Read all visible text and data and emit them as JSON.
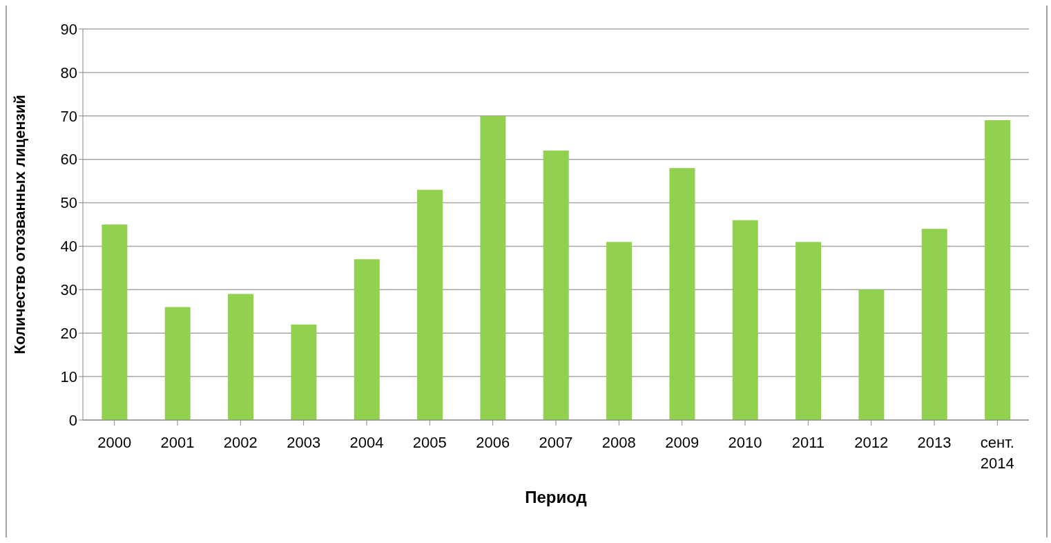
{
  "chart_data": {
    "type": "bar",
    "xlabel": "Период",
    "ylabel": "Количество отозванных лицензий",
    "categories": [
      "2000",
      "2001",
      "2002",
      "2003",
      "2004",
      "2005",
      "2006",
      "2007",
      "2008",
      "2009",
      "2010",
      "2011",
      "2012",
      "2013",
      "сент. 2014"
    ],
    "values": [
      45,
      26,
      29,
      22,
      37,
      53,
      70,
      62,
      41,
      58,
      46,
      41,
      30,
      44,
      69
    ],
    "color": "#92d050",
    "ylim": [
      0,
      90
    ],
    "yticks": [
      0,
      10,
      20,
      30,
      40,
      50,
      60,
      70,
      80,
      90
    ],
    "grid": "y",
    "legend": false
  }
}
